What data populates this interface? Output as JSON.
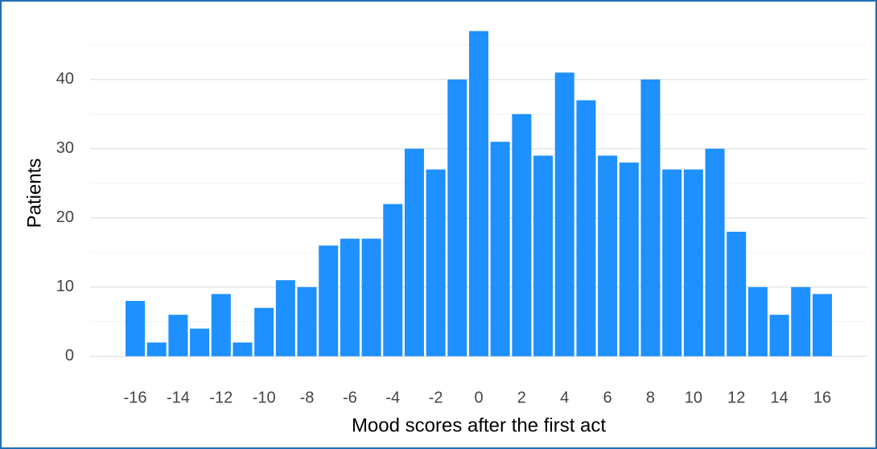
{
  "chart_data": {
    "type": "bar",
    "x_label": "Mood scores after the first act",
    "y_label": "Patients",
    "x": [
      -16,
      -15,
      -14,
      -13,
      -12,
      -11,
      -10,
      -9,
      -8,
      -7,
      -6,
      -5,
      -4,
      -3,
      -2,
      -1,
      0,
      1,
      2,
      3,
      4,
      5,
      6,
      7,
      8,
      9,
      10,
      11,
      12,
      13,
      14,
      15,
      16
    ],
    "values": [
      8,
      2,
      6,
      4,
      9,
      2,
      7,
      11,
      10,
      16,
      17,
      17,
      22,
      30,
      27,
      40,
      47,
      31,
      35,
      29,
      41,
      37,
      29,
      28,
      40,
      27,
      27,
      30,
      18,
      10,
      6,
      10,
      9
    ],
    "color": "#1e90ff",
    "xlim": [
      -18.1,
      18.1
    ],
    "xticks": [
      -16,
      -14,
      -12,
      -10,
      -8,
      -6,
      -4,
      -2,
      0,
      2,
      4,
      6,
      8,
      10,
      12,
      14,
      16
    ],
    "ylim": [
      -2,
      48
    ],
    "yticks": [
      0,
      10,
      20,
      30,
      40
    ],
    "minor_yticks": [
      5,
      15,
      25,
      35,
      45
    ],
    "grid": true
  }
}
